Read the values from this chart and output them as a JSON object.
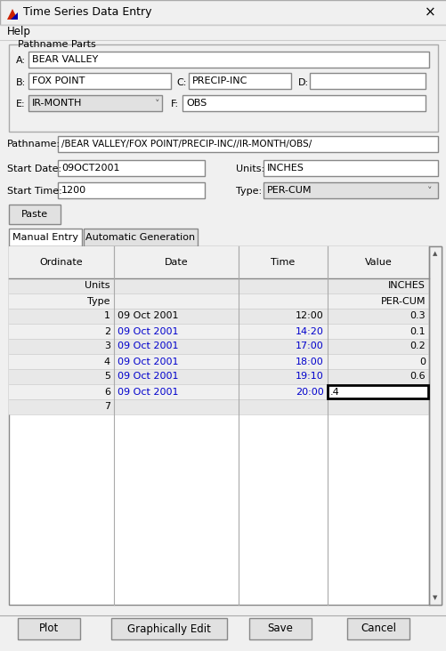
{
  "title": "Time Series Data Entry",
  "menu": "Help",
  "pathname_parts_label": "Pathname Parts",
  "field_A_label": "A:",
  "field_A_value": "BEAR VALLEY",
  "field_B_label": "B:",
  "field_B_value": "FOX POINT",
  "field_C_label": "C:",
  "field_C_value": "PRECIP-INC",
  "field_D_label": "D:",
  "field_D_value": "",
  "field_E_label": "E:",
  "field_E_value": "IR-MONTH",
  "field_F_label": "F:",
  "field_F_value": "OBS",
  "pathname_label": "Pathname:",
  "pathname_value": "/BEAR VALLEY/FOX POINT/PRECIP-INC//IR-MONTH/OBS/",
  "start_date_label": "Start Date:",
  "start_date_value": "09OCT2001",
  "start_time_label": "Start Time:",
  "start_time_value": "1200",
  "units_label": "Units:",
  "units_value": "INCHES",
  "type_label": "Type:",
  "type_value": "PER-CUM",
  "paste_btn": "Paste",
  "tab1": "Manual Entry",
  "tab2": "Automatic Generation",
  "col_headers": [
    "Ordinate",
    "Date",
    "Time",
    "Value"
  ],
  "row_units": [
    "Units",
    "",
    "",
    "INCHES"
  ],
  "row_type": [
    "Type",
    "",
    "",
    "PER-CUM"
  ],
  "rows": [
    [
      "1",
      "09 Oct 2001",
      "12:00",
      "0.3",
      false
    ],
    [
      "2",
      "09 Oct 2001",
      "14:20",
      "0.1",
      false
    ],
    [
      "3",
      "09 Oct 2001",
      "17:00",
      "0.2",
      false
    ],
    [
      "4",
      "09 Oct 2001",
      "18:00",
      "0",
      false
    ],
    [
      "5",
      "09 Oct 2001",
      "19:10",
      "0.6",
      false
    ],
    [
      "6",
      "09 Oct 2001",
      "20:00",
      ".4",
      true
    ],
    [
      "7",
      "",
      "",
      "",
      false
    ]
  ],
  "btn_plot": "Plot",
  "btn_graphically_edit": "Graphically Edit",
  "btn_save": "Save",
  "btn_cancel": "Cancel",
  "bg_color": "#f0f0f0",
  "white": "#ffffff",
  "border_color": "#999999",
  "blue_text": "#0000cc",
  "black_text": "#000000",
  "table_stripe1": "#e8e8e8",
  "table_stripe2": "#f0f0f0",
  "btn_bg": "#e1e1e1",
  "tab_active_bg": "#ffffff",
  "tab_inactive_bg": "#e1e1e1",
  "dropdown_bg": "#e1e1e1",
  "groupbox_bg": "#f0f0f0"
}
